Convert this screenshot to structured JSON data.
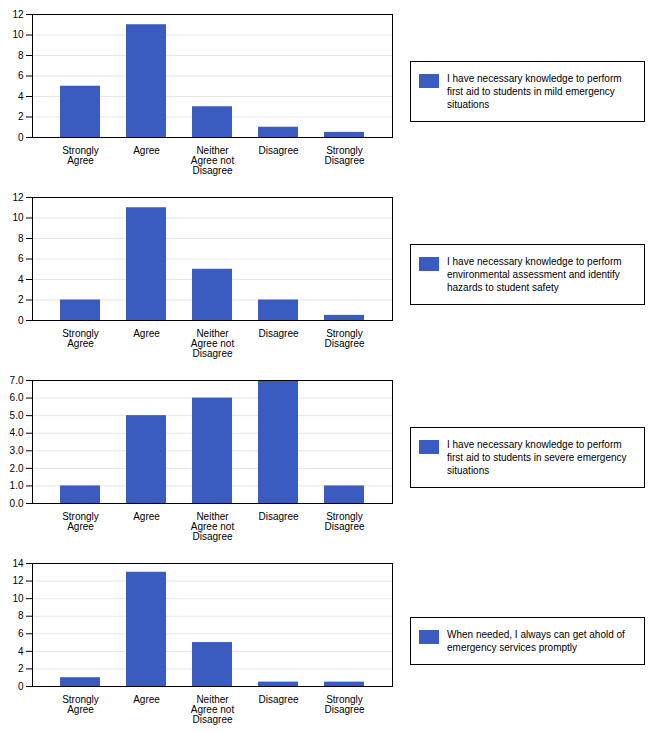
{
  "chart_data": [
    {
      "type": "bar",
      "categories": [
        "Strongly\nAgree",
        "Agree",
        "Neither\nAgree not\nDisagree",
        "Disagree",
        "Strongly\nDisagree"
      ],
      "series": [
        {
          "name": "I have necessary knowledge to perform\nfirst aid to students in mild emergency\nsituations",
          "color": "#3a5bbf",
          "values": [
            5,
            11,
            3,
            1,
            0.5
          ]
        }
      ],
      "ylim": [
        0,
        12
      ],
      "yticks": [
        0,
        2,
        4,
        6,
        8,
        10,
        12
      ],
      "grid": true,
      "legend": "right"
    },
    {
      "type": "bar",
      "categories": [
        "Strongly\nAgree",
        "Agree",
        "Neither\nAgree not\nDisagree",
        "Disagree",
        "Strongly\nDisagree"
      ],
      "series": [
        {
          "name": "I have necessary knowledge to perform\nenvironmental assessment and identify\nhazards to student safety",
          "color": "#3a5bbf",
          "values": [
            2,
            11,
            5,
            2,
            0.5
          ]
        }
      ],
      "ylim": [
        0,
        12
      ],
      "yticks": [
        0,
        2,
        4,
        6,
        8,
        10,
        12
      ],
      "grid": true,
      "legend": "right"
    },
    {
      "type": "bar",
      "categories": [
        "Strongly\nAgree",
        "Agree",
        "Neither\nAgree not\nDisagree",
        "Disagree",
        "Strongly\nDisagree"
      ],
      "series": [
        {
          "name": "I have necessary knowledge to perform\nfirst aid to students in severe emergency\nsituations",
          "color": "#3a5bbf",
          "values": [
            1,
            5,
            6,
            7,
            1
          ]
        }
      ],
      "ylim": [
        0,
        7
      ],
      "yticks": [
        0,
        1,
        2,
        3,
        4,
        5,
        6,
        7
      ],
      "grid": true,
      "legend": "right"
    },
    {
      "type": "bar",
      "categories": [
        "Strongly\nAgree",
        "Agree",
        "Neither\nAgree not\nDisagree",
        "Disagree",
        "Strongly\nDisagree"
      ],
      "series": [
        {
          "name": "When needed, I always can get ahold of\nemergency services promptly",
          "color": "#3a5bbf",
          "values": [
            1,
            13,
            5,
            0.5,
            0.5
          ]
        }
      ],
      "ylim": [
        0,
        14
      ],
      "yticks": [
        0,
        2,
        4,
        6,
        8,
        10,
        12,
        14
      ],
      "grid": true,
      "legend": "right"
    }
  ]
}
